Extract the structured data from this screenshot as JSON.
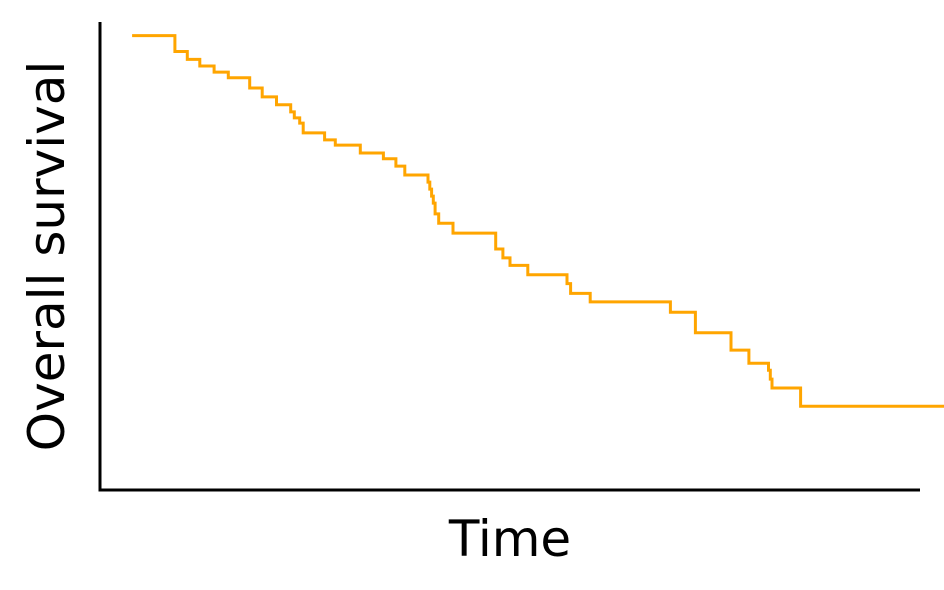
{
  "chart_data": {
    "type": "line",
    "title": "",
    "xlabel": "Time",
    "ylabel": "Overall survival",
    "xlim": [
      0,
      23
    ],
    "ylim": [
      0,
      1
    ],
    "grid": false,
    "legend": "none",
    "show_ticks": false,
    "step": "post",
    "colors": {
      "curve": "#FFA500",
      "axes": "#000000"
    },
    "series": [
      {
        "x": [
          0.9,
          2.1,
          2.45,
          2.8,
          3.2,
          3.6,
          4.2,
          4.55,
          4.95,
          5.35,
          5.45,
          5.6,
          5.7,
          6.3,
          6.6,
          7.3,
          7.95,
          8.3,
          8.55,
          9.2,
          9.25,
          9.3,
          9.35,
          9.4,
          9.5,
          9.9,
          11.1,
          11.3,
          11.5,
          12.0,
          13.1,
          13.2,
          13.75,
          16.0,
          16.7,
          17.7,
          18.2,
          18.75,
          18.8,
          18.85,
          19.65,
          23.8
        ],
        "y": [
          0.971,
          0.937,
          0.92,
          0.906,
          0.893,
          0.881,
          0.859,
          0.84,
          0.823,
          0.808,
          0.795,
          0.784,
          0.763,
          0.748,
          0.737,
          0.72,
          0.708,
          0.692,
          0.673,
          0.658,
          0.643,
          0.628,
          0.613,
          0.59,
          0.57,
          0.549,
          0.515,
          0.496,
          0.48,
          0.46,
          0.441,
          0.42,
          0.402,
          0.38,
          0.336,
          0.299,
          0.271,
          0.256,
          0.237,
          0.218,
          0.179,
          0.148
        ]
      }
    ]
  }
}
